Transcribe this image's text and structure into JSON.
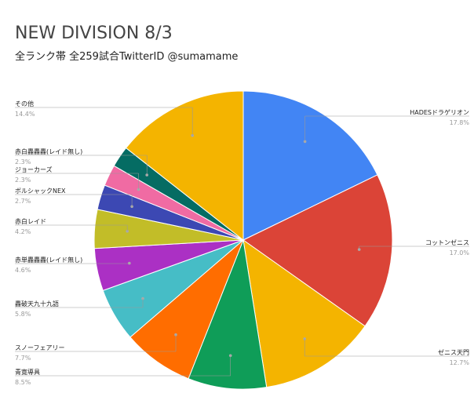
{
  "chart_data": {
    "type": "pie",
    "title": "NEW DIVISION 8/3",
    "subtitle": "全ランク帯 全259試合TwitterID @sumamame",
    "slices": [
      {
        "label": "HADESドラゲリオン",
        "value": 17.8,
        "pct_text": "17.8%",
        "color": "#4285f4"
      },
      {
        "label": "コットンゼニス",
        "value": 17.0,
        "pct_text": "17.0%",
        "color": "#db4437"
      },
      {
        "label": "ゼニス天門",
        "value": 12.7,
        "pct_text": "12.7%",
        "color": "#f4b400"
      },
      {
        "label": "青寛導具",
        "value": 8.5,
        "pct_text": "8.5%",
        "color": "#0f9d58"
      },
      {
        "label": "スノーフェアリー",
        "value": 7.7,
        "pct_text": "7.7%",
        "color": "#ff6d00"
      },
      {
        "label": "轟破天九十九語",
        "value": 5.8,
        "pct_text": "5.8%",
        "color": "#46bdc6"
      },
      {
        "label": "赤単轟轟轟(レイド無し)",
        "value": 4.6,
        "pct_text": "4.6%",
        "color": "#ab30c4"
      },
      {
        "label": "赤白レイド",
        "value": 4.2,
        "pct_text": "4.2%",
        "color": "#c2bd28"
      },
      {
        "label": "ボルシャックNEX",
        "value": 2.7,
        "pct_text": "2.7%",
        "color": "#3c48b3"
      },
      {
        "label": "ジョーカーズ",
        "value": 2.3,
        "pct_text": "2.3%",
        "color": "#f06ba3"
      },
      {
        "label": "赤白轟轟轟(レイド無し)",
        "value": 2.3,
        "pct_text": "2.3%",
        "color": "#056c63"
      },
      {
        "label": "その他",
        "value": 14.4,
        "pct_text": "14.4%",
        "color": "#f4b400"
      }
    ]
  }
}
